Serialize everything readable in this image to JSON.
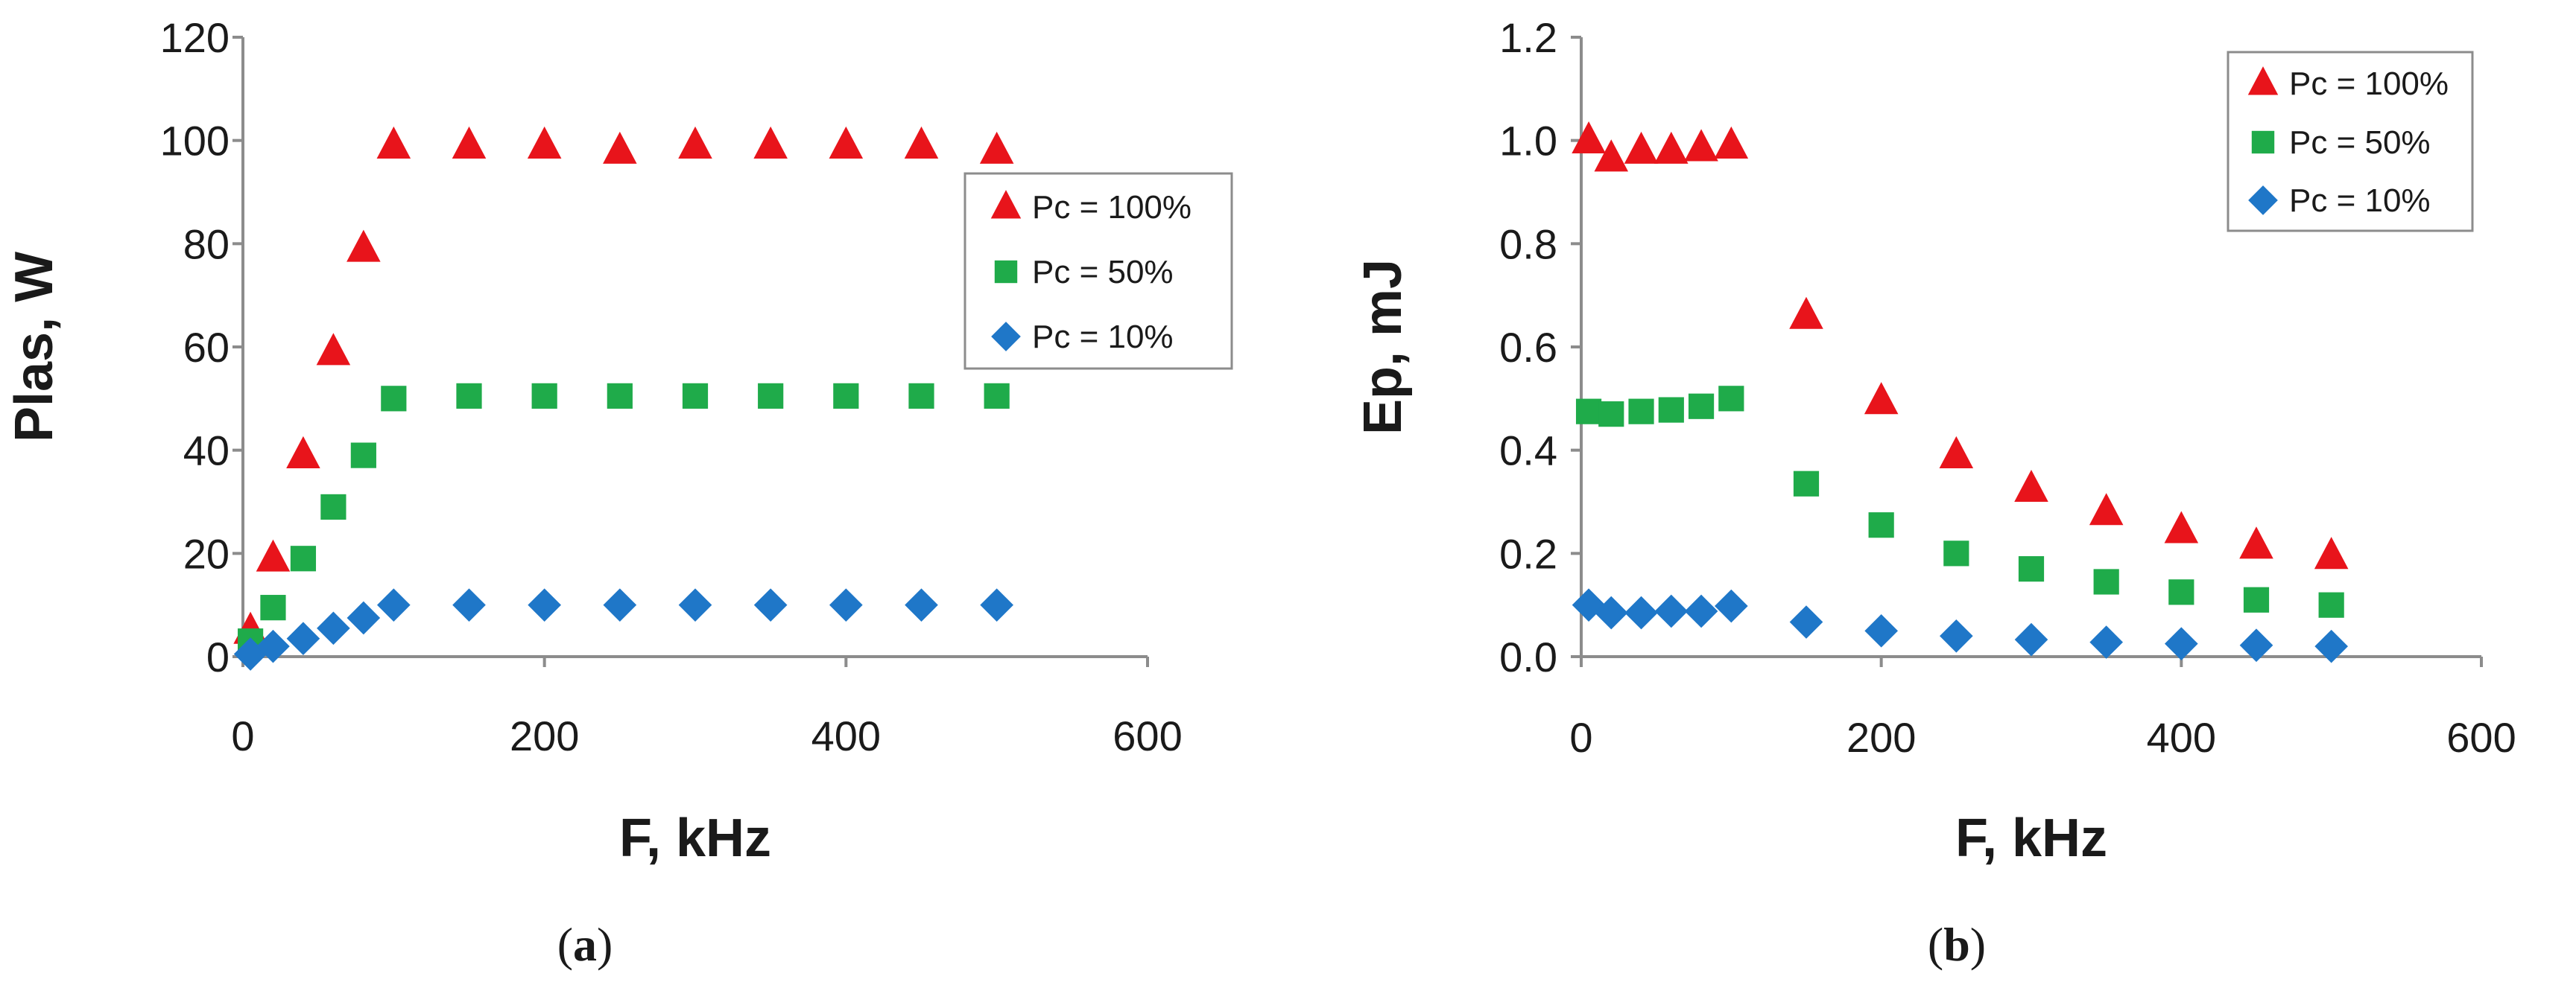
{
  "chart_data": [
    {
      "type": "scatter",
      "panel": "a",
      "caption": {
        "open": "(",
        "letter": "a",
        "close": ")"
      },
      "xlabel": "F, kHz",
      "ylabel": "Plas, W",
      "xlim": [
        0,
        600
      ],
      "ylim": [
        0,
        120
      ],
      "xticks": [
        0,
        200,
        400,
        600
      ],
      "yticks": [
        0,
        20,
        40,
        60,
        80,
        100,
        120
      ],
      "ytick_labels": [
        "0",
        "20",
        "40",
        "60",
        "80",
        "100",
        "120"
      ],
      "legend_position": "right-center",
      "series": [
        {
          "name": "Pc = 100%",
          "marker": "triangle",
          "color": "#e8141b",
          "x": [
            5,
            20,
            40,
            60,
            80,
            100,
            150,
            200,
            250,
            300,
            350,
            400,
            450,
            500
          ],
          "y": [
            5,
            19,
            39,
            59,
            79,
            99,
            99,
            99,
            98,
            99,
            99,
            99,
            99,
            98
          ]
        },
        {
          "name": "Pc = 50%",
          "marker": "square",
          "color": "#1fab4a",
          "x": [
            5,
            20,
            40,
            60,
            80,
            100,
            150,
            200,
            250,
            300,
            350,
            400,
            450,
            500
          ],
          "y": [
            3,
            9.5,
            19,
            29,
            39,
            50,
            50.5,
            50.5,
            50.5,
            50.5,
            50.5,
            50.5,
            50.5,
            50.5
          ]
        },
        {
          "name": "Pc = 10%",
          "marker": "diamond",
          "color": "#1f77c8",
          "x": [
            5,
            20,
            40,
            60,
            80,
            100,
            150,
            200,
            250,
            300,
            350,
            400,
            450,
            500
          ],
          "y": [
            0.5,
            2,
            3.5,
            5.5,
            7.5,
            10,
            10,
            10,
            10,
            10,
            10,
            10,
            10,
            10
          ]
        }
      ]
    },
    {
      "type": "scatter",
      "panel": "b",
      "caption": {
        "open": "(",
        "letter": "b",
        "close": ")"
      },
      "xlabel": "F, kHz",
      "ylabel": "Ep, mJ",
      "xlim": [
        0,
        600
      ],
      "ylim": [
        0,
        1.2
      ],
      "xticks": [
        0,
        200,
        400,
        600
      ],
      "yticks": [
        0,
        0.2,
        0.4,
        0.6,
        0.8,
        1.0,
        1.2
      ],
      "ytick_labels": [
        "0.0",
        "0.2",
        "0.4",
        "0.6",
        "0.8",
        "1.0",
        "1.2"
      ],
      "legend_position": "top-right",
      "series": [
        {
          "name": "Pc = 100%",
          "marker": "triangle",
          "color": "#e8141b",
          "x": [
            5,
            20,
            40,
            60,
            80,
            100,
            150,
            200,
            250,
            300,
            350,
            400,
            450,
            500
          ],
          "y": [
            1.0,
            0.965,
            0.98,
            0.98,
            0.985,
            0.99,
            0.66,
            0.495,
            0.39,
            0.325,
            0.28,
            0.245,
            0.215,
            0.195
          ]
        },
        {
          "name": "Pc = 50%",
          "marker": "square",
          "color": "#1fab4a",
          "x": [
            5,
            20,
            40,
            60,
            80,
            100,
            150,
            200,
            250,
            300,
            350,
            400,
            450,
            500
          ],
          "y": [
            0.475,
            0.47,
            0.475,
            0.478,
            0.485,
            0.5,
            0.335,
            0.255,
            0.2,
            0.17,
            0.145,
            0.125,
            0.11,
            0.1
          ]
        },
        {
          "name": "Pc = 10%",
          "marker": "diamond",
          "color": "#1f77c8",
          "x": [
            5,
            20,
            40,
            60,
            80,
            100,
            150,
            200,
            250,
            300,
            350,
            400,
            450,
            500
          ],
          "y": [
            0.1,
            0.085,
            0.085,
            0.088,
            0.088,
            0.098,
            0.067,
            0.05,
            0.04,
            0.033,
            0.028,
            0.025,
            0.022,
            0.02
          ]
        }
      ]
    }
  ]
}
